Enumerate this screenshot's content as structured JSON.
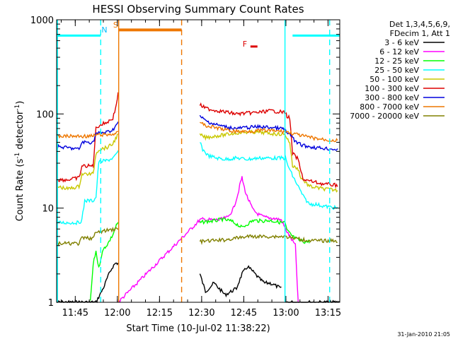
{
  "chart_data": {
    "type": "line",
    "title": "HESSI Observing Summary Count Rates",
    "xlabel": "Start Time (10-Jul-02 11:38:22)",
    "ylabel_main": "Count Rate (s",
    "ylabel_sup1": "-1",
    "ylabel_mid": " detector",
    "ylabel_sup2": "-1",
    "ylabel_end": ")",
    "yscale": "log",
    "ylim": [
      1,
      1000
    ],
    "xlim": [
      0,
      100.8
    ],
    "x_unit": "minutes since 11:38:22",
    "x_ticks": [
      {
        "label": "11:45",
        "t": 6.63
      },
      {
        "label": "12:00",
        "t": 21.63
      },
      {
        "label": "12:15",
        "t": 36.63
      },
      {
        "label": "12:30",
        "t": 51.63
      },
      {
        "label": "12:45",
        "t": 66.63
      },
      {
        "label": "13:00",
        "t": 81.63
      },
      {
        "label": "13:15",
        "t": 96.63
      }
    ],
    "y_ticks": [
      {
        "label": "1",
        "v": 1
      },
      {
        "label": "10",
        "v": 10
      },
      {
        "label": "100",
        "v": 100
      },
      {
        "label": "1000",
        "v": 1000
      }
    ],
    "legend": {
      "header": [
        "Det 1,3,4,5,6,9,",
        "FDecim 1, Att 1"
      ],
      "placement": "right"
    },
    "series": [
      {
        "name": "3 - 6 keV",
        "color": "#000000",
        "points": [
          [
            0,
            1
          ],
          [
            2,
            1
          ],
          [
            4,
            1
          ],
          [
            6,
            1
          ],
          [
            8,
            1
          ],
          [
            11,
            1
          ],
          [
            14,
            1
          ],
          [
            16,
            1.3
          ],
          [
            17,
            1.5
          ],
          [
            18,
            1.8
          ],
          [
            19,
            2.1
          ],
          [
            20,
            2.4
          ],
          [
            21,
            2.6
          ],
          [
            21.9,
            2.6
          ]
        ],
        "points2": [
          [
            51,
            2
          ],
          [
            53,
            1.3
          ],
          [
            56,
            1.6
          ],
          [
            60,
            1.2
          ],
          [
            64,
            1.4
          ],
          [
            66,
            2.0
          ],
          [
            68,
            2.4
          ],
          [
            70,
            2.1
          ],
          [
            72,
            1.8
          ],
          [
            74,
            1.6
          ],
          [
            76,
            1.6
          ],
          [
            78,
            1.5
          ],
          [
            80,
            1.4
          ]
        ],
        "points3": [
          [
            81.5,
            1
          ],
          [
            90,
            1
          ],
          [
            100.8,
            1
          ]
        ]
      },
      {
        "name": "6 - 12 keV",
        "color": "#ff00ff",
        "points": [
          [
            21.9,
            1
          ],
          [
            51,
            7.5
          ],
          [
            52,
            7.6
          ],
          [
            55,
            7.5
          ],
          [
            58,
            7.5
          ],
          [
            61,
            8
          ],
          [
            63,
            10
          ],
          [
            64.5,
            14
          ],
          [
            65.5,
            19
          ],
          [
            66,
            21
          ],
          [
            66.5,
            18
          ],
          [
            67.5,
            14
          ],
          [
            69,
            11
          ],
          [
            70,
            9.5
          ],
          [
            72,
            8.5
          ],
          [
            74,
            8
          ],
          [
            77,
            7.8
          ],
          [
            80,
            7.5
          ],
          [
            81.5,
            6
          ],
          [
            83,
            5
          ],
          [
            85,
            4
          ],
          [
            86,
            1
          ]
        ]
      },
      {
        "name": "12 - 25 keV",
        "color": "#00ff00",
        "points": [
          [
            12,
            1
          ],
          [
            13,
            2.5
          ],
          [
            14,
            3.5
          ],
          [
            15,
            2.3
          ],
          [
            16,
            3.2
          ],
          [
            17,
            3.8
          ],
          [
            18,
            4.1
          ],
          [
            19,
            4.6
          ],
          [
            20,
            5.2
          ],
          [
            21,
            6.3
          ],
          [
            21.9,
            7
          ]
        ],
        "points2": [
          [
            51,
            7
          ],
          [
            53,
            7.2
          ],
          [
            56,
            7.3
          ],
          [
            59,
            7.6
          ],
          [
            62,
            7.3
          ],
          [
            64,
            6.8
          ],
          [
            66,
            6.2
          ],
          [
            68,
            6.8
          ],
          [
            70,
            7.4
          ],
          [
            73,
            7.3
          ],
          [
            76,
            7.4
          ],
          [
            79,
            7.1
          ],
          [
            81.3,
            7
          ],
          [
            82,
            5.8
          ],
          [
            84,
            5
          ],
          [
            86,
            4.6
          ],
          [
            88,
            4.4
          ],
          [
            90,
            4.4
          ]
        ]
      },
      {
        "name": "25 - 50 keV",
        "color": "#00ffff",
        "points": [
          [
            0,
            7
          ],
          [
            5,
            7
          ],
          [
            8,
            7
          ],
          [
            9,
            7.5
          ],
          [
            10,
            12
          ],
          [
            13,
            12
          ],
          [
            14,
            13
          ],
          [
            15,
            31
          ],
          [
            18,
            32
          ],
          [
            20,
            34
          ],
          [
            21,
            36
          ],
          [
            21.9,
            40
          ]
        ],
        "points2": [
          [
            51,
            50
          ],
          [
            52,
            42
          ],
          [
            54,
            36
          ],
          [
            57,
            34
          ],
          [
            60,
            33
          ],
          [
            64,
            34
          ],
          [
            68,
            33
          ],
          [
            72,
            34
          ],
          [
            76,
            34
          ],
          [
            80,
            34
          ],
          [
            81.5,
            34
          ],
          [
            82,
            30
          ],
          [
            84,
            22
          ],
          [
            86,
            17
          ],
          [
            88,
            13
          ],
          [
            90,
            11
          ],
          [
            92,
            11
          ],
          [
            95,
            10.5
          ],
          [
            100,
            10
          ]
        ]
      },
      {
        "name": "50 - 100 keV",
        "color": "#c8c800",
        "points": [
          [
            0,
            17
          ],
          [
            4,
            16
          ],
          [
            8,
            17
          ],
          [
            9,
            23
          ],
          [
            13,
            23
          ],
          [
            14,
            38
          ],
          [
            15,
            42
          ],
          [
            18,
            44
          ],
          [
            20,
            48
          ],
          [
            21,
            55
          ],
          [
            21.9,
            60
          ]
        ],
        "points2": [
          [
            51,
            60
          ],
          [
            53,
            56
          ],
          [
            56,
            58
          ],
          [
            60,
            60
          ],
          [
            64,
            63
          ],
          [
            68,
            64
          ],
          [
            72,
            64
          ],
          [
            76,
            62
          ],
          [
            80,
            61
          ],
          [
            81.5,
            60
          ],
          [
            82,
            55
          ],
          [
            83,
            50
          ],
          [
            84,
            28
          ],
          [
            86,
            26
          ],
          [
            87,
            21
          ],
          [
            90,
            17
          ],
          [
            95,
            16
          ],
          [
            100,
            15.5
          ]
        ]
      },
      {
        "name": "100 - 300 keV",
        "color": "#dd0000",
        "points": [
          [
            0,
            20
          ],
          [
            4,
            20
          ],
          [
            8,
            21
          ],
          [
            9,
            28
          ],
          [
            13,
            28
          ],
          [
            14,
            70
          ],
          [
            15,
            75
          ],
          [
            18,
            82
          ],
          [
            20,
            90
          ],
          [
            21,
            115
          ],
          [
            21.9,
            165
          ]
        ],
        "points2": [
          [
            51,
            125
          ],
          [
            53,
            115
          ],
          [
            56,
            110
          ],
          [
            60,
            105
          ],
          [
            64,
            100
          ],
          [
            68,
            102
          ],
          [
            72,
            104
          ],
          [
            76,
            108
          ],
          [
            80,
            105
          ],
          [
            81.5,
            103
          ],
          [
            82,
            95
          ],
          [
            83,
            90
          ],
          [
            84,
            38
          ],
          [
            86,
            33
          ],
          [
            87,
            24
          ],
          [
            88,
            20
          ],
          [
            95,
            18
          ],
          [
            100,
            17.5
          ]
        ]
      },
      {
        "name": "300 - 800 keV",
        "color": "#0000dd",
        "points": [
          [
            0,
            45
          ],
          [
            3,
            44
          ],
          [
            6,
            43
          ],
          [
            8,
            42
          ],
          [
            9,
            50
          ],
          [
            13,
            50
          ],
          [
            14,
            62
          ],
          [
            18,
            64
          ],
          [
            20,
            68
          ],
          [
            21,
            75
          ],
          [
            21.9,
            80
          ]
        ],
        "points2": [
          [
            51,
            95
          ],
          [
            53,
            85
          ],
          [
            56,
            78
          ],
          [
            60,
            73
          ],
          [
            64,
            70
          ],
          [
            68,
            72
          ],
          [
            72,
            73
          ],
          [
            76,
            72
          ],
          [
            80,
            70
          ],
          [
            81.5,
            68
          ],
          [
            82,
            62
          ],
          [
            84,
            58
          ],
          [
            85,
            50
          ],
          [
            88,
            46
          ],
          [
            92,
            44
          ],
          [
            96,
            43
          ],
          [
            100,
            42
          ]
        ]
      },
      {
        "name": "800 - 7000 keV",
        "color": "#ee7700",
        "points": [
          [
            0,
            58
          ],
          [
            4,
            58
          ],
          [
            8,
            58
          ],
          [
            9,
            58
          ],
          [
            13,
            58
          ],
          [
            14,
            60
          ],
          [
            18,
            60
          ],
          [
            21,
            62
          ],
          [
            21.9,
            63
          ]
        ],
        "points2": [
          [
            22.1,
            780
          ],
          [
            44.5,
            780
          ]
        ],
        "points3": [
          [
            51,
            80
          ],
          [
            54,
            74
          ],
          [
            58,
            70
          ],
          [
            62,
            66
          ],
          [
            66,
            65
          ],
          [
            70,
            66
          ],
          [
            74,
            67
          ],
          [
            78,
            66
          ],
          [
            81.5,
            65
          ],
          [
            84,
            62
          ],
          [
            88,
            58
          ],
          [
            92,
            55
          ],
          [
            96,
            53
          ],
          [
            100,
            52
          ]
        ]
      },
      {
        "name": "7000 - 20000 keV",
        "color": "#808000",
        "points": [
          [
            0,
            4.2
          ],
          [
            5,
            4.2
          ],
          [
            8,
            4.2
          ],
          [
            9,
            4.8
          ],
          [
            13,
            4.8
          ],
          [
            14,
            5.5
          ],
          [
            18,
            5.8
          ],
          [
            21,
            6
          ],
          [
            21.9,
            6
          ]
        ],
        "points2": [
          [
            51,
            4.4
          ],
          [
            55,
            4.5
          ],
          [
            60,
            4.6
          ],
          [
            64,
            4.8
          ],
          [
            68,
            5
          ],
          [
            72,
            5
          ],
          [
            76,
            5
          ],
          [
            80,
            5
          ],
          [
            81.5,
            5
          ],
          [
            84,
            4.8
          ],
          [
            88,
            4.6
          ],
          [
            92,
            4.5
          ],
          [
            96,
            4.5
          ],
          [
            100,
            4.5
          ]
        ]
      }
    ],
    "annotations": [
      {
        "text": "N",
        "color": "#00bbff",
        "t": 17.0,
        "v": 730
      },
      {
        "text": "S",
        "color": "#ee7700",
        "t": 21.0,
        "v": 830
      },
      {
        "text": "F",
        "color": "#dd0000",
        "t": 67.0,
        "v": 520
      }
    ],
    "segments": [
      {
        "name": "night-bar-left",
        "color": "#00ffff",
        "t0": 0,
        "t1": 15.7,
        "v": 680
      },
      {
        "name": "night-bar-right",
        "color": "#00ffff",
        "t0": 84.0,
        "t1": 100.8,
        "v": 680
      },
      {
        "name": "flare-bar",
        "color": "#dd0000",
        "t0": 69.0,
        "t1": 71.5,
        "v": 520
      }
    ],
    "vlines": [
      {
        "name": "night-end-solid",
        "color": "#00ffff",
        "t": 0.3,
        "style": "solid"
      },
      {
        "name": "night-end-dashed",
        "color": "#00ffff",
        "t": 15.7,
        "style": "dashed"
      },
      {
        "name": "saa-start-solid",
        "color": "#ee7700",
        "t": 22.1,
        "style": "solid"
      },
      {
        "name": "saa-end-dashed",
        "color": "#ee7700",
        "t": 44.5,
        "style": "dashed"
      },
      {
        "name": "night-start-solid",
        "color": "#00ffff",
        "t": 81.3,
        "style": "solid"
      },
      {
        "name": "night-end-dashed-2",
        "color": "#00ffff",
        "t": 97.2,
        "style": "dashed"
      }
    ]
  },
  "footer": {
    "date": "31-Jan-2010 21:05"
  }
}
